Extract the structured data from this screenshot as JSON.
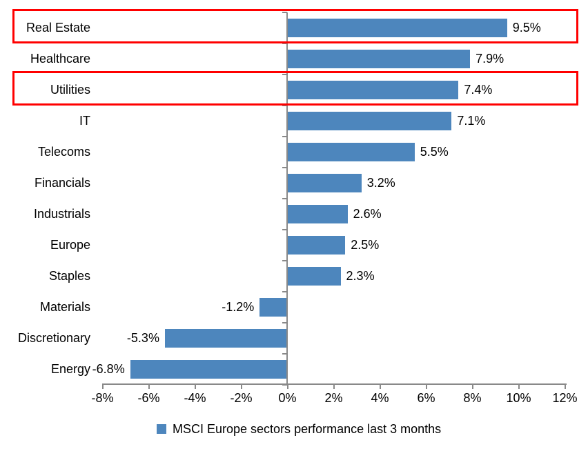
{
  "chart_data": {
    "type": "bar",
    "orientation": "horizontal",
    "title": "",
    "legend": {
      "label": "MSCI Europe sectors performance last 3 months",
      "position": "bottom"
    },
    "categories": [
      "Real Estate",
      "Healthcare",
      "Utilities",
      "IT",
      "Telecoms",
      "Financials",
      "Industrials",
      "Europe",
      "Staples",
      "Materials",
      "Discretionary",
      "Energy"
    ],
    "values": [
      9.5,
      7.9,
      7.4,
      7.1,
      5.5,
      3.2,
      2.6,
      2.5,
      2.3,
      -1.2,
      -5.3,
      -6.8
    ],
    "data_labels": [
      "9.5%",
      "7.9%",
      "7.4%",
      "7.1%",
      "5.5%",
      "3.2%",
      "2.6%",
      "2.5%",
      "2.3%",
      "-1.2%",
      "-5.3%",
      "-6.8%"
    ],
    "x_axis": {
      "min": -8,
      "max": 12,
      "tick_step": 2,
      "ticks": [
        -8,
        -6,
        -4,
        -2,
        0,
        2,
        4,
        6,
        8,
        10,
        12
      ],
      "tick_labels": [
        "-8%",
        "-6%",
        "-4%",
        "-2%",
        "0%",
        "2%",
        "4%",
        "6%",
        "8%",
        "10%",
        "12%"
      ]
    },
    "grid": false,
    "highlighted_categories": [
      "Real Estate",
      "Utilities"
    ],
    "colors": {
      "bar": "#4d86bd",
      "highlight_box": "#ff0000",
      "axis": "#898989",
      "text": "#000000",
      "background": "#ffffff"
    }
  }
}
